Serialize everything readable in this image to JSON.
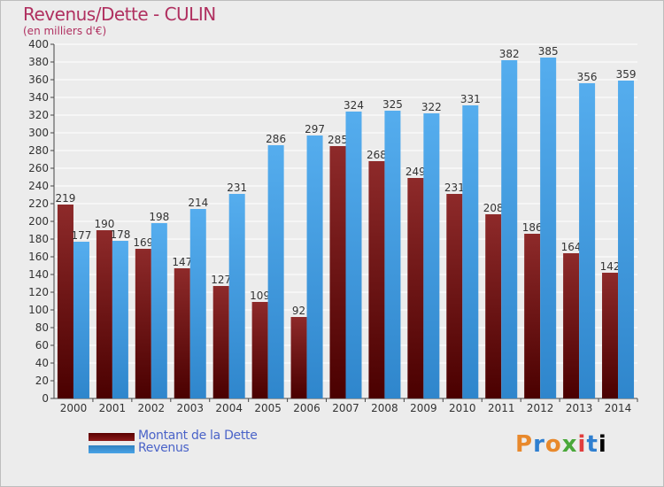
{
  "header": {
    "title": "Revenus/Dette - CULIN",
    "subtitle": "(en milliers d'€)"
  },
  "logo": {
    "text": "Proxiti"
  },
  "colors": {
    "dette": "#8b1a1a",
    "revenus": "#4aa3e6",
    "grid": "#ffffff",
    "axis": "#444444",
    "plot_bg": "#ececec"
  },
  "chart_data": {
    "type": "bar",
    "categories": [
      "2000",
      "2001",
      "2002",
      "2003",
      "2004",
      "2005",
      "2006",
      "2007",
      "2008",
      "2009",
      "2010",
      "2011",
      "2012",
      "2013",
      "2014"
    ],
    "series": [
      {
        "name": "Montant de la Dette",
        "values": [
          219,
          190,
          169,
          147,
          127,
          109,
          92,
          285,
          268,
          249,
          231,
          208,
          186,
          164,
          142
        ]
      },
      {
        "name": "Revenus",
        "values": [
          177,
          178,
          198,
          214,
          231,
          286,
          297,
          324,
          325,
          322,
          331,
          382,
          385,
          356,
          359
        ]
      }
    ],
    "title": "Revenus/Dette - CULIN",
    "ylabel": "(en milliers d'€)",
    "ylim": [
      0,
      400
    ],
    "ytick_step": 20,
    "grid": true,
    "legend_position": "bottom-left"
  }
}
